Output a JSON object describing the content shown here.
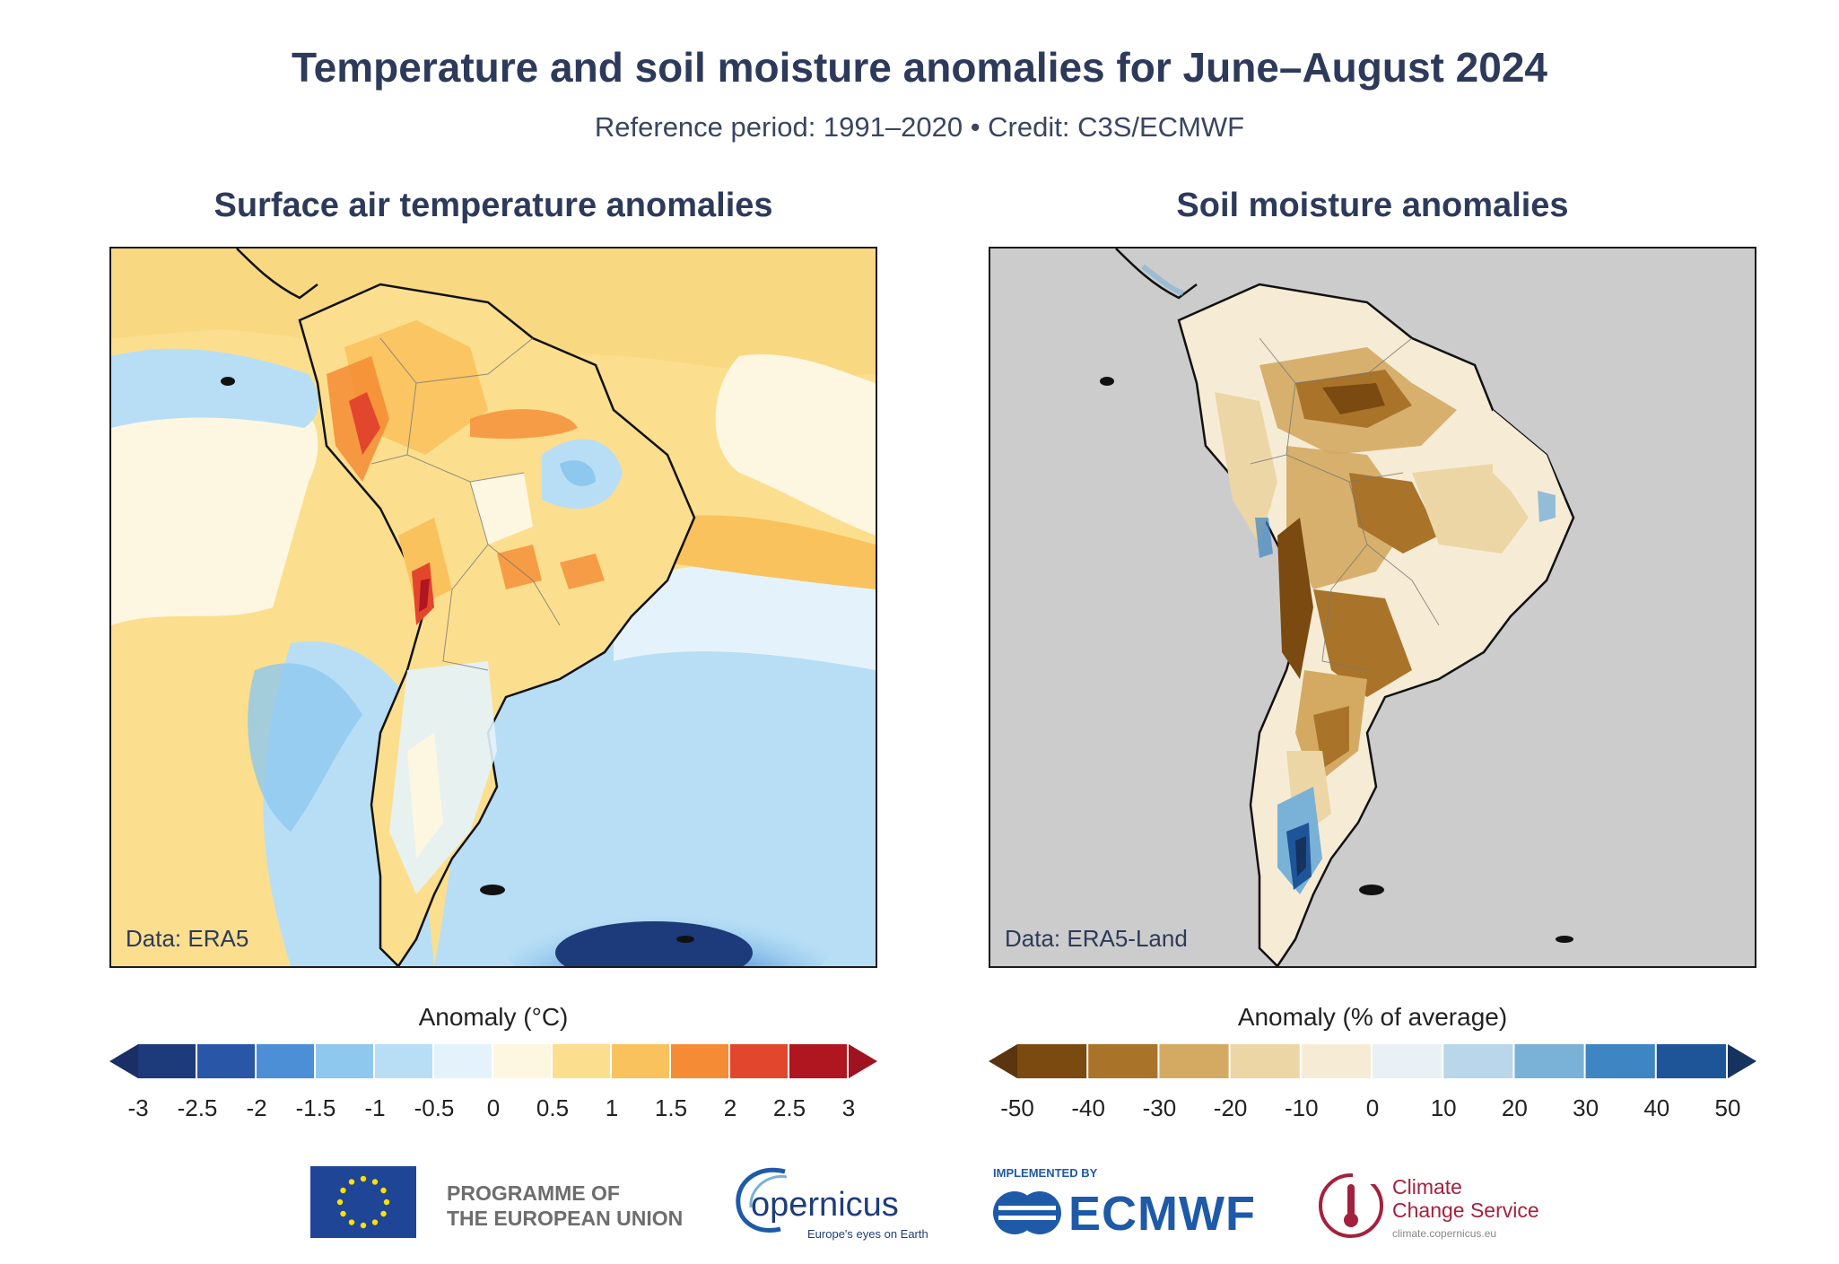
{
  "title": "Temperature and soil moisture anomalies for June–August 2024",
  "subtitle": "Reference period: 1991–2020 • Credit: C3S/ECMWF",
  "panels": [
    {
      "title": "Surface air temperature anomalies",
      "data_label": "Data: ERA5",
      "colorbar": {
        "title": "Anomaly (°C)",
        "ticks": [
          "-3",
          "-2.5",
          "-2",
          "-1.5",
          "-1",
          "-0.5",
          "0",
          "0.5",
          "1",
          "1.5",
          "2",
          "2.5",
          "3"
        ],
        "colors": [
          "#1d3a7a",
          "#2a56a8",
          "#4d8fd6",
          "#8ec8ef",
          "#b8def5",
          "#e4f3fb",
          "#fdf7e2",
          "#fbdf8e",
          "#f9c25d",
          "#f58b34",
          "#e2462c",
          "#b0161f"
        ],
        "under_color": "#1a2f66",
        "over_color": "#a01220"
      }
    },
    {
      "title": "Soil moisture anomalies",
      "data_label": "Data: ERA5-Land",
      "colorbar": {
        "title": "Anomaly (% of average)",
        "ticks": [
          "-50",
          "-40",
          "-30",
          "-20",
          "-10",
          "0",
          "10",
          "20",
          "30",
          "40",
          "50"
        ],
        "colors": [
          "#7a4a10",
          "#a9742a",
          "#d4aa63",
          "#ecd6a6",
          "#f6ecd6",
          "#e9f0f6",
          "#b9d6ea",
          "#7ab1d7",
          "#3d85c3",
          "#1e5598"
        ],
        "under_color": "#5a3510",
        "over_color": "#16325e"
      }
    }
  ],
  "logos": {
    "eu_text_line1": "PROGRAMME OF",
    "eu_text_line2": "THE EUROPEAN UNION",
    "copernicus": "opernicus",
    "copernicus_tagline": "Europe's eyes on Earth",
    "ecmwf_small": "IMPLEMENTED BY",
    "ecmwf": "ECMWF",
    "c3s_line1": "Climate",
    "c3s_line2": "Change Service",
    "c3s_url": "climate.copernicus.eu"
  }
}
